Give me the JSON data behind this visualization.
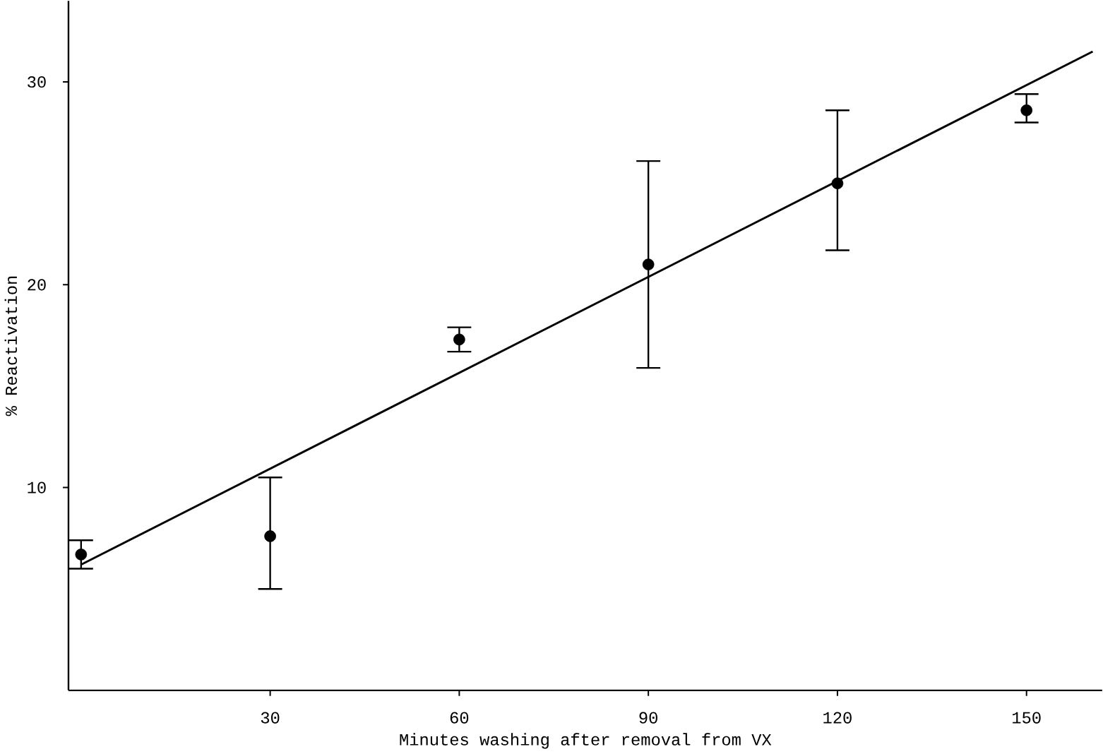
{
  "chart_data": {
    "type": "scatter",
    "xlabel": "Minutes washing after removal from VX",
    "ylabel": "% Reactivation",
    "xlim": [
      -2,
      162
    ],
    "ylim": [
      0,
      34
    ],
    "xticks": [
      30,
      60,
      90,
      120,
      150
    ],
    "yticks": [
      10,
      20,
      30
    ],
    "series": [
      {
        "color": "#000000",
        "marker": "circle",
        "x": [
          0,
          30,
          60,
          90,
          120,
          150
        ],
        "values": [
          6.7,
          7.6,
          17.3,
          21.0,
          25.0,
          28.6
        ],
        "errors": [
          [
            6.0,
            7.4
          ],
          [
            5.0,
            10.5
          ],
          [
            16.7,
            17.9
          ],
          [
            15.9,
            26.1
          ],
          [
            21.7,
            28.6
          ],
          [
            28.0,
            29.4
          ]
        ]
      },
      {
        "type": "line",
        "color": "#000000",
        "x": [
          0,
          160.5
        ],
        "values": [
          6.2,
          31.5
        ],
        "line_style": "solid"
      }
    ]
  }
}
